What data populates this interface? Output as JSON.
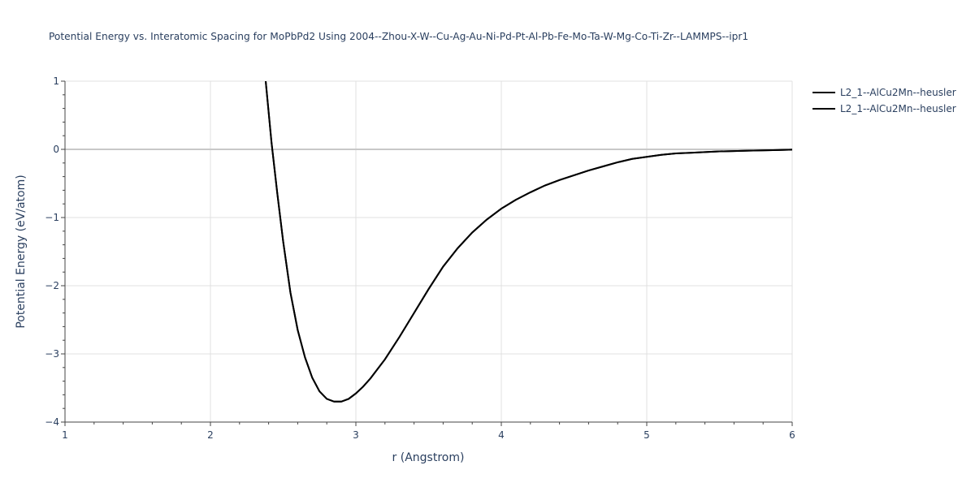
{
  "chart_data": {
    "type": "line",
    "title": "Potential Energy vs. Interatomic Spacing for MoPbPd2 Using 2004--Zhou-X-W--Cu-Ag-Au-Ni-Pd-Pt-Al-Pb-Fe-Mo-Ta-W-Mg-Co-Ti-Zr--LAMMPS--ipr1",
    "xlabel": "r (Angstrom)",
    "ylabel": "Potential Energy (eV/atom)",
    "xlim": [
      1,
      6
    ],
    "ylim": [
      -4,
      1
    ],
    "xticks": [
      1,
      2,
      3,
      4,
      5,
      6
    ],
    "yticks": [
      -4,
      -3,
      -2,
      -1,
      0,
      1
    ],
    "xtick_labels": [
      "1",
      "2",
      "3",
      "4",
      "5",
      "6"
    ],
    "ytick_labels": [
      "−4",
      "−3",
      "−2",
      "−1",
      "0",
      "1"
    ],
    "grid": true,
    "zero_line": true,
    "legend_position": "top-right",
    "series": [
      {
        "name": "L2_1--AlCu2Mn--heusler",
        "color": "#000000",
        "x": [
          2.38,
          2.42,
          2.46,
          2.5,
          2.55,
          2.6,
          2.65,
          2.7,
          2.75,
          2.8,
          2.85,
          2.9,
          2.95,
          3.0,
          3.05,
          3.1,
          3.2,
          3.3,
          3.4,
          3.5,
          3.6,
          3.7,
          3.8,
          3.9,
          4.0,
          4.1,
          4.2,
          4.3,
          4.4,
          4.5,
          4.6,
          4.7,
          4.8,
          4.9,
          5.0,
          5.1,
          5.2,
          5.3,
          5.4,
          5.5,
          5.6,
          5.7,
          5.8,
          5.9,
          6.0
        ],
        "y": [
          1.0,
          0.1,
          -0.65,
          -1.35,
          -2.1,
          -2.65,
          -3.05,
          -3.35,
          -3.55,
          -3.66,
          -3.7,
          -3.7,
          -3.66,
          -3.58,
          -3.48,
          -3.36,
          -3.08,
          -2.75,
          -2.4,
          -2.05,
          -1.72,
          -1.45,
          -1.22,
          -1.03,
          -0.87,
          -0.74,
          -0.63,
          -0.53,
          -0.45,
          -0.38,
          -0.31,
          -0.25,
          -0.19,
          -0.14,
          -0.11,
          -0.08,
          -0.06,
          -0.05,
          -0.04,
          -0.03,
          -0.025,
          -0.02,
          -0.015,
          -0.01,
          -0.005
        ]
      },
      {
        "name": "L2_1--AlCu2Mn--heusler",
        "color": "#000000",
        "x": [
          2.38,
          2.42,
          2.46,
          2.5,
          2.55,
          2.6,
          2.65,
          2.7,
          2.75,
          2.8,
          2.85,
          2.9,
          2.95,
          3.0,
          3.05,
          3.1,
          3.2,
          3.3,
          3.4,
          3.5,
          3.6,
          3.7,
          3.8,
          3.9,
          4.0,
          4.1,
          4.2,
          4.3,
          4.4,
          4.5,
          4.6,
          4.7,
          4.8,
          4.9,
          5.0,
          5.1,
          5.2,
          5.3,
          5.4,
          5.5,
          5.6,
          5.7,
          5.8,
          5.9,
          6.0
        ],
        "y": [
          1.0,
          0.1,
          -0.65,
          -1.35,
          -2.1,
          -2.65,
          -3.05,
          -3.35,
          -3.55,
          -3.66,
          -3.7,
          -3.7,
          -3.66,
          -3.58,
          -3.48,
          -3.36,
          -3.08,
          -2.75,
          -2.4,
          -2.05,
          -1.72,
          -1.45,
          -1.22,
          -1.03,
          -0.87,
          -0.74,
          -0.63,
          -0.53,
          -0.45,
          -0.38,
          -0.31,
          -0.25,
          -0.19,
          -0.14,
          -0.11,
          -0.08,
          -0.06,
          -0.05,
          -0.04,
          -0.03,
          -0.025,
          -0.02,
          -0.015,
          -0.01,
          -0.005
        ]
      }
    ]
  }
}
